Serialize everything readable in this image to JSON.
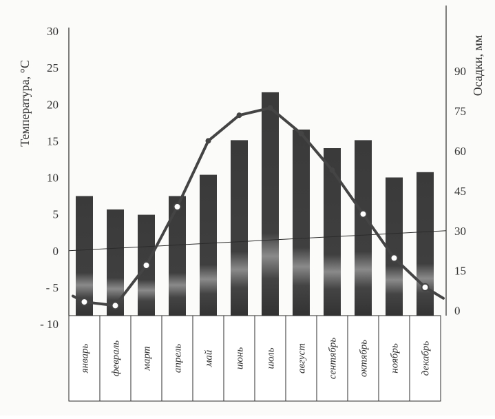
{
  "chart_data": {
    "type": "bar+line",
    "categories": [
      "январь",
      "февраль",
      "март",
      "апрель",
      "май",
      "июнь",
      "июль",
      "август",
      "сентябрь",
      "октябрь",
      "ноябрь",
      "декабрь"
    ],
    "series": [
      {
        "type": "bar",
        "axis": "right",
        "values": [
          43,
          38,
          36,
          43,
          51,
          64,
          82,
          68,
          61,
          64,
          50,
          52
        ]
      },
      {
        "type": "line",
        "axis": "left",
        "values": [
          -7,
          -7.5,
          -2,
          6,
          15,
          18.5,
          19.5,
          16,
          11,
          5,
          -1,
          -5
        ]
      }
    ],
    "ylabel": "Температура, °С",
    "y2label": "Осадки, мм",
    "ylim": [
      -10,
      30
    ],
    "y2lim": [
      -5,
      105
    ],
    "yticks": [
      "30",
      "25",
      "20",
      "15",
      "10",
      "5",
      "0",
      "- 5",
      "- 10"
    ],
    "y2ticks": [
      "90",
      "75",
      "60",
      "45",
      "30",
      "15",
      "0"
    ],
    "colors": {
      "bar": "#3a3a3a",
      "bar_highlight": "#8a8a8a",
      "line": "#444444",
      "marker_fill": "#ffffff",
      "axis": "#2b2b2b",
      "text": "#333333"
    },
    "grid": false
  }
}
